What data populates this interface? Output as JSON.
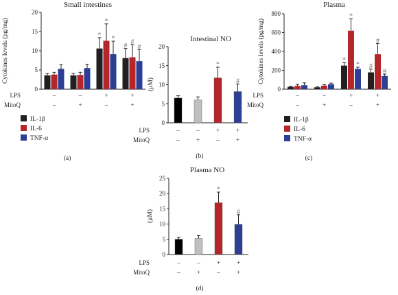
{
  "colors": {
    "IL-1β": "#231f20",
    "IL-6": "#b5262b",
    "TNF-α": "#2c3f95",
    "no_bars": [
      "#000000",
      "#bfbfbf",
      "#b5262b",
      "#2c3f95"
    ]
  },
  "conditions": {
    "row_labels": [
      "LPS",
      "MitoQ"
    ],
    "LPS": [
      "–",
      "–",
      "+",
      "+"
    ],
    "MitoQ": [
      "–",
      "+",
      "–",
      "+"
    ]
  },
  "legend": [
    "IL-1β",
    "IL-6",
    "TNF-α"
  ],
  "chart_data": [
    {
      "panel": "(a)",
      "type": "bar",
      "title": "Small intestines",
      "ylabel": "Cytokines levels (pg/mg)",
      "xlabel": "",
      "ylim": [
        0,
        20
      ],
      "yticks": [
        0,
        5,
        10,
        15,
        20
      ],
      "groups": 4,
      "series": [
        {
          "name": "IL-1β",
          "values": [
            3.6,
            3.6,
            10.6,
            8.1
          ],
          "errors": [
            0.5,
            0.5,
            2.8,
            2.5
          ],
          "sig": [
            "",
            "",
            "*",
            "#"
          ]
        },
        {
          "name": "IL-6",
          "values": [
            3.8,
            3.7,
            12.6,
            8.3
          ],
          "errors": [
            0.6,
            0.7,
            4.4,
            3.3
          ],
          "sig": [
            "",
            "",
            "*",
            "#"
          ]
        },
        {
          "name": "TNF-α",
          "values": [
            5.3,
            5.5,
            9.1,
            7.3
          ],
          "errors": [
            1.1,
            1.0,
            3.4,
            3.0
          ],
          "sig": [
            "",
            "",
            "*",
            "#"
          ]
        }
      ],
      "grid": false,
      "legend": "below"
    },
    {
      "panel": "(b)",
      "type": "bar",
      "title": "Intestinal NO",
      "ylabel": "(μM)",
      "xlabel": "",
      "ylim": [
        0,
        20
      ],
      "yticks": [
        0,
        5,
        10,
        15,
        20
      ],
      "values": [
        6.5,
        6.0,
        11.8,
        8.2
      ],
      "errors": [
        0.6,
        0.8,
        2.8,
        2.0
      ],
      "sig": [
        "",
        "",
        "*",
        "#"
      ],
      "grid": false
    },
    {
      "panel": "(c)",
      "type": "bar",
      "title": "Plasma",
      "ylabel": "Cytokines levels (pg/mg)",
      "xlabel": "",
      "ylim": [
        0,
        800
      ],
      "yticks": [
        0,
        200,
        400,
        600,
        800
      ],
      "groups": 4,
      "series": [
        {
          "name": "IL-1β",
          "values": [
            25,
            20,
            250,
            178
          ],
          "errors": [
            6,
            5,
            30,
            35
          ],
          "sig": [
            "",
            "",
            "*",
            "#"
          ]
        },
        {
          "name": "IL-6",
          "values": [
            35,
            38,
            620,
            370
          ],
          "errors": [
            15,
            10,
            125,
            115
          ],
          "sig": [
            "",
            "",
            "*",
            "#"
          ]
        },
        {
          "name": "TNF-α",
          "values": [
            42,
            52,
            215,
            140
          ],
          "errors": [
            25,
            12,
            18,
            20
          ],
          "sig": [
            "",
            "",
            "*",
            "#"
          ]
        }
      ],
      "grid": false,
      "legend": "below"
    },
    {
      "panel": "(d)",
      "type": "bar",
      "title": "Plasma NO",
      "ylabel": "(μM)",
      "xlabel": "",
      "ylim": [
        0,
        25
      ],
      "yticks": [
        0,
        5,
        10,
        15,
        20,
        25
      ],
      "values": [
        5.0,
        5.3,
        17.0,
        9.9
      ],
      "errors": [
        0.6,
        0.9,
        3.5,
        3.2
      ],
      "sig": [
        "",
        "",
        "*",
        "#"
      ],
      "grid": false
    }
  ]
}
